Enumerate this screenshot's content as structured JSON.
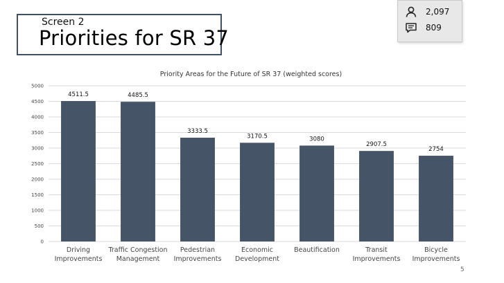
{
  "header": {
    "screen_label": "Screen 2",
    "title": "Priorities for SR 37"
  },
  "stats": {
    "participants": "2,097",
    "participants_icon": "person-icon",
    "comments": "809",
    "comments_icon": "comment-icon"
  },
  "page_number": "5",
  "colors": {
    "bar": "#465468",
    "accent": "#45536a",
    "grid": "#d9d9d9"
  },
  "chart_data": {
    "type": "bar",
    "title": "Priority Areas for the Future of SR 37 (weighted scores)",
    "categories": [
      [
        "Driving",
        "Improvements"
      ],
      [
        "Traffic Congestion",
        "Management"
      ],
      [
        "Pedestrian",
        "Improvements"
      ],
      [
        "Economic",
        "Development"
      ],
      [
        "Beautification"
      ],
      [
        "Transit",
        "Improvements"
      ],
      [
        "Bicycle",
        "Improvements"
      ]
    ],
    "values": [
      4511.5,
      4485.5,
      3333.5,
      3170.5,
      3080,
      2907.5,
      2754
    ],
    "value_labels": [
      "4511.5",
      "4485.5",
      "3333.5",
      "3170.5",
      "3080",
      "2907.5",
      "2754"
    ],
    "ylim": [
      0,
      5000
    ],
    "yticks": [
      0,
      500,
      1000,
      1500,
      2000,
      2500,
      3000,
      3500,
      4000,
      4500,
      5000
    ],
    "grid": true,
    "legend": "none"
  }
}
